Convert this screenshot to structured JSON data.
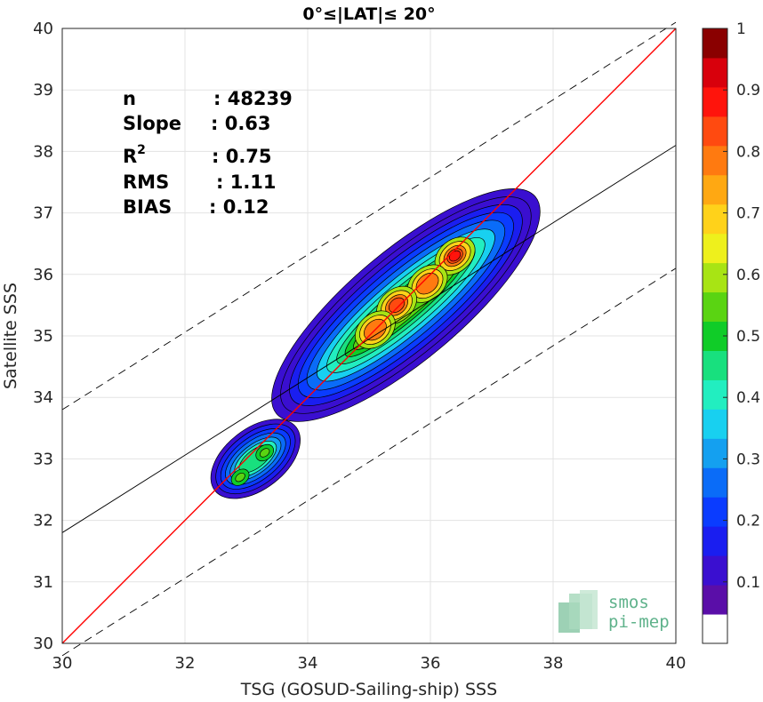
{
  "chart_data": {
    "type": "heatmap",
    "subtype": "density-contour-scatter",
    "title": "0°≤|LAT|≤ 20°",
    "xlabel": "TSG (GOSUD-Sailing-ship) SSS",
    "ylabel": "Satellite SSS",
    "xlim": [
      30,
      40
    ],
    "ylim": [
      30,
      40
    ],
    "xticks": [
      "30",
      "32",
      "34",
      "36",
      "38",
      "40"
    ],
    "yticks": [
      "30",
      "31",
      "32",
      "33",
      "34",
      "35",
      "36",
      "37",
      "38",
      "39",
      "40"
    ],
    "grid": true,
    "stats": [
      {
        "label": "n",
        "value": ": 48239"
      },
      {
        "label": "Slope",
        "value": ": 0.63"
      },
      {
        "label": "R",
        "sup": "2",
        "value": ": 0.75"
      },
      {
        "label": "RMS",
        "value": ": 1.11"
      },
      {
        "label": "BIAS",
        "value": ": 0.12"
      }
    ],
    "lines": {
      "one_to_one": {
        "color": "#ff0000",
        "x": [
          30,
          40
        ],
        "y": [
          30,
          40
        ]
      },
      "regression": {
        "color": "#000000",
        "x": [
          30,
          40
        ],
        "y": [
          31.8,
          38.1
        ]
      },
      "upper_dashed": {
        "color": "#000000",
        "x": [
          30,
          40
        ],
        "y": [
          33.8,
          40.1
        ]
      },
      "lower_dashed": {
        "color": "#000000",
        "x": [
          30,
          40
        ],
        "y": [
          29.8,
          36.1
        ]
      }
    },
    "clusters": [
      {
        "center": [
          35.6,
          35.5
        ],
        "peaks": [
          [
            36.4,
            36.3
          ],
          [
            35.95,
            35.85
          ],
          [
            35.45,
            35.5
          ],
          [
            35.1,
            35.1
          ]
        ],
        "max_density": 0.9
      },
      {
        "center": [
          33.15,
          33.0
        ],
        "peaks": [
          [
            33.3,
            33.1
          ],
          [
            32.9,
            32.7
          ]
        ],
        "max_density": 0.55
      }
    ],
    "colorbar": {
      "ticks": [
        "0.1",
        "0.2",
        "0.3",
        "0.4",
        "0.5",
        "0.6",
        "0.7",
        "0.8",
        "0.9",
        "1"
      ],
      "range": [
        0,
        1
      ],
      "colors": [
        "#ffffff",
        "#5a0ea8",
        "#3a0fd0",
        "#1a1ef0",
        "#0a3cff",
        "#0a6cf8",
        "#14a0f0",
        "#18d0f0",
        "#22eec0",
        "#18e07e",
        "#10cc28",
        "#5ad412",
        "#a8e414",
        "#eef01c",
        "#ffd21a",
        "#ffa812",
        "#ff7a10",
        "#ff4a10",
        "#ff140c",
        "#d8000c",
        "#8a0000"
      ]
    },
    "logo": {
      "line1": "smos",
      "line2": "pi-mep"
    }
  }
}
